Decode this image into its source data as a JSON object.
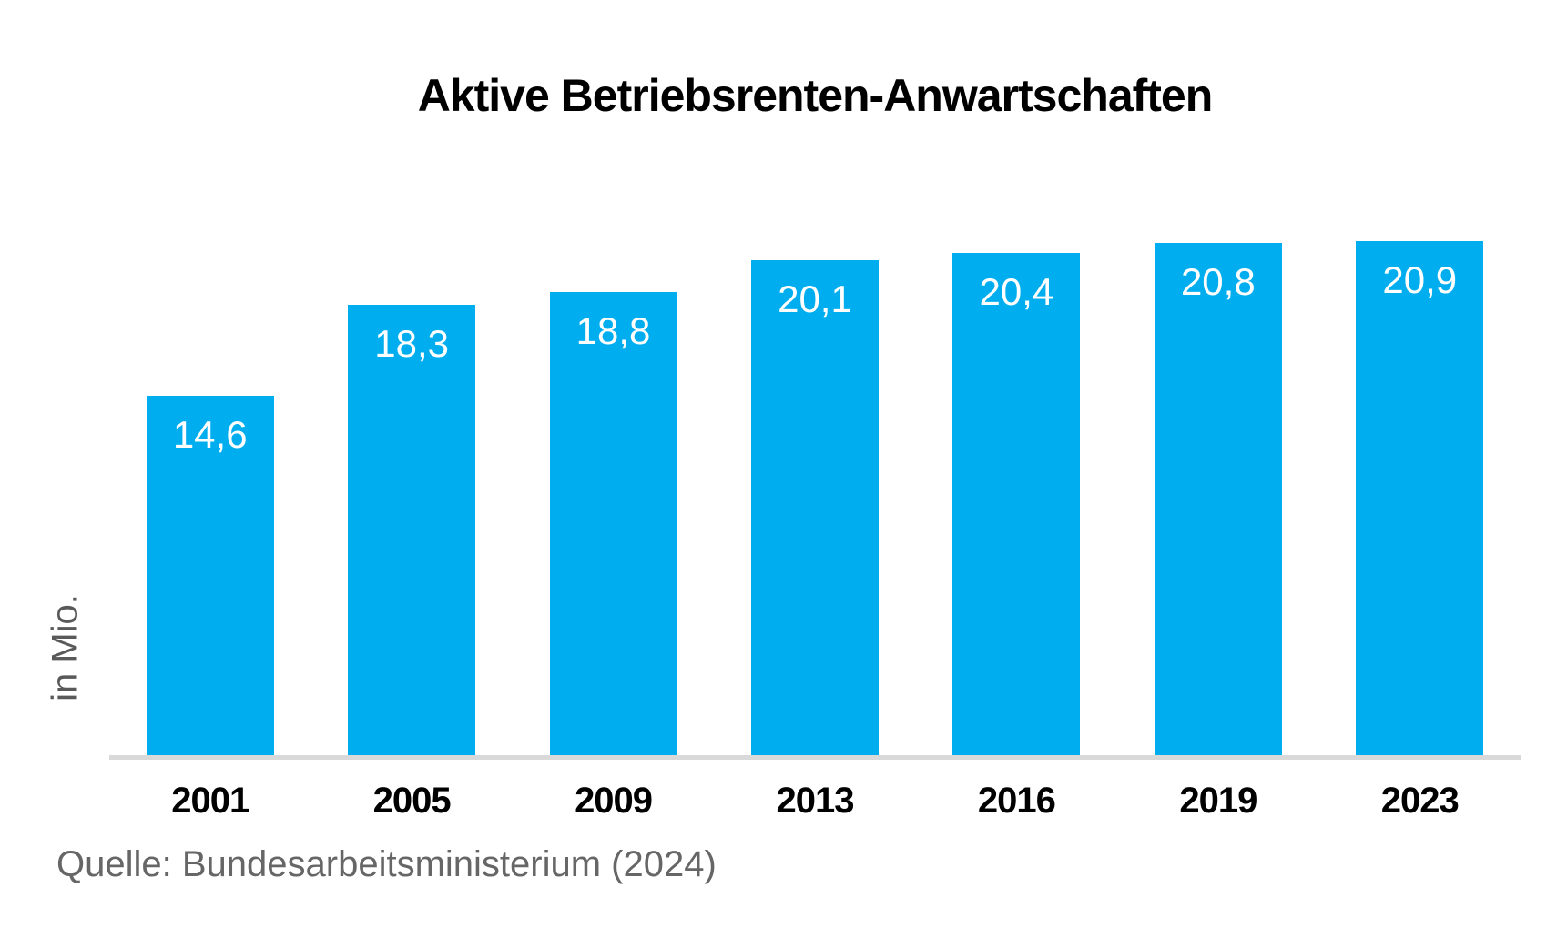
{
  "page": {
    "title": "Aktive Betriebsrenten-Anwartschaften",
    "y_axis_label": "in Mio.",
    "source": "Quelle: Bundesarbeitsministerium (2024)"
  },
  "colors": {
    "bar": "#00AEEF",
    "axis_line": "#D9D9D9",
    "title_text": "#000000",
    "value_label_text": "#FFFFFF",
    "year_label_text": "#000000",
    "y_axis_label_text": "#595959",
    "source_text": "#666666",
    "background": "#FFFFFF"
  },
  "chart_data": {
    "type": "bar",
    "title": "Aktive Betriebsrenten-Anwartschaften",
    "categories": [
      "2001",
      "2005",
      "2009",
      "2013",
      "2016",
      "2019",
      "2023"
    ],
    "values": [
      14.6,
      18.3,
      18.8,
      20.1,
      20.4,
      20.8,
      20.9
    ],
    "value_labels": [
      "14,6",
      "18,3",
      "18,8",
      "20,1",
      "20,4",
      "20,8",
      "20,9"
    ],
    "xlabel": "",
    "ylabel": "in Mio.",
    "ylim": [
      0,
      23
    ],
    "grid": false,
    "legend": false,
    "value_labels_position": "inside-top",
    "bar_color": "#00AEEF",
    "source": "Quelle: Bundesarbeitsministerium (2024)"
  }
}
